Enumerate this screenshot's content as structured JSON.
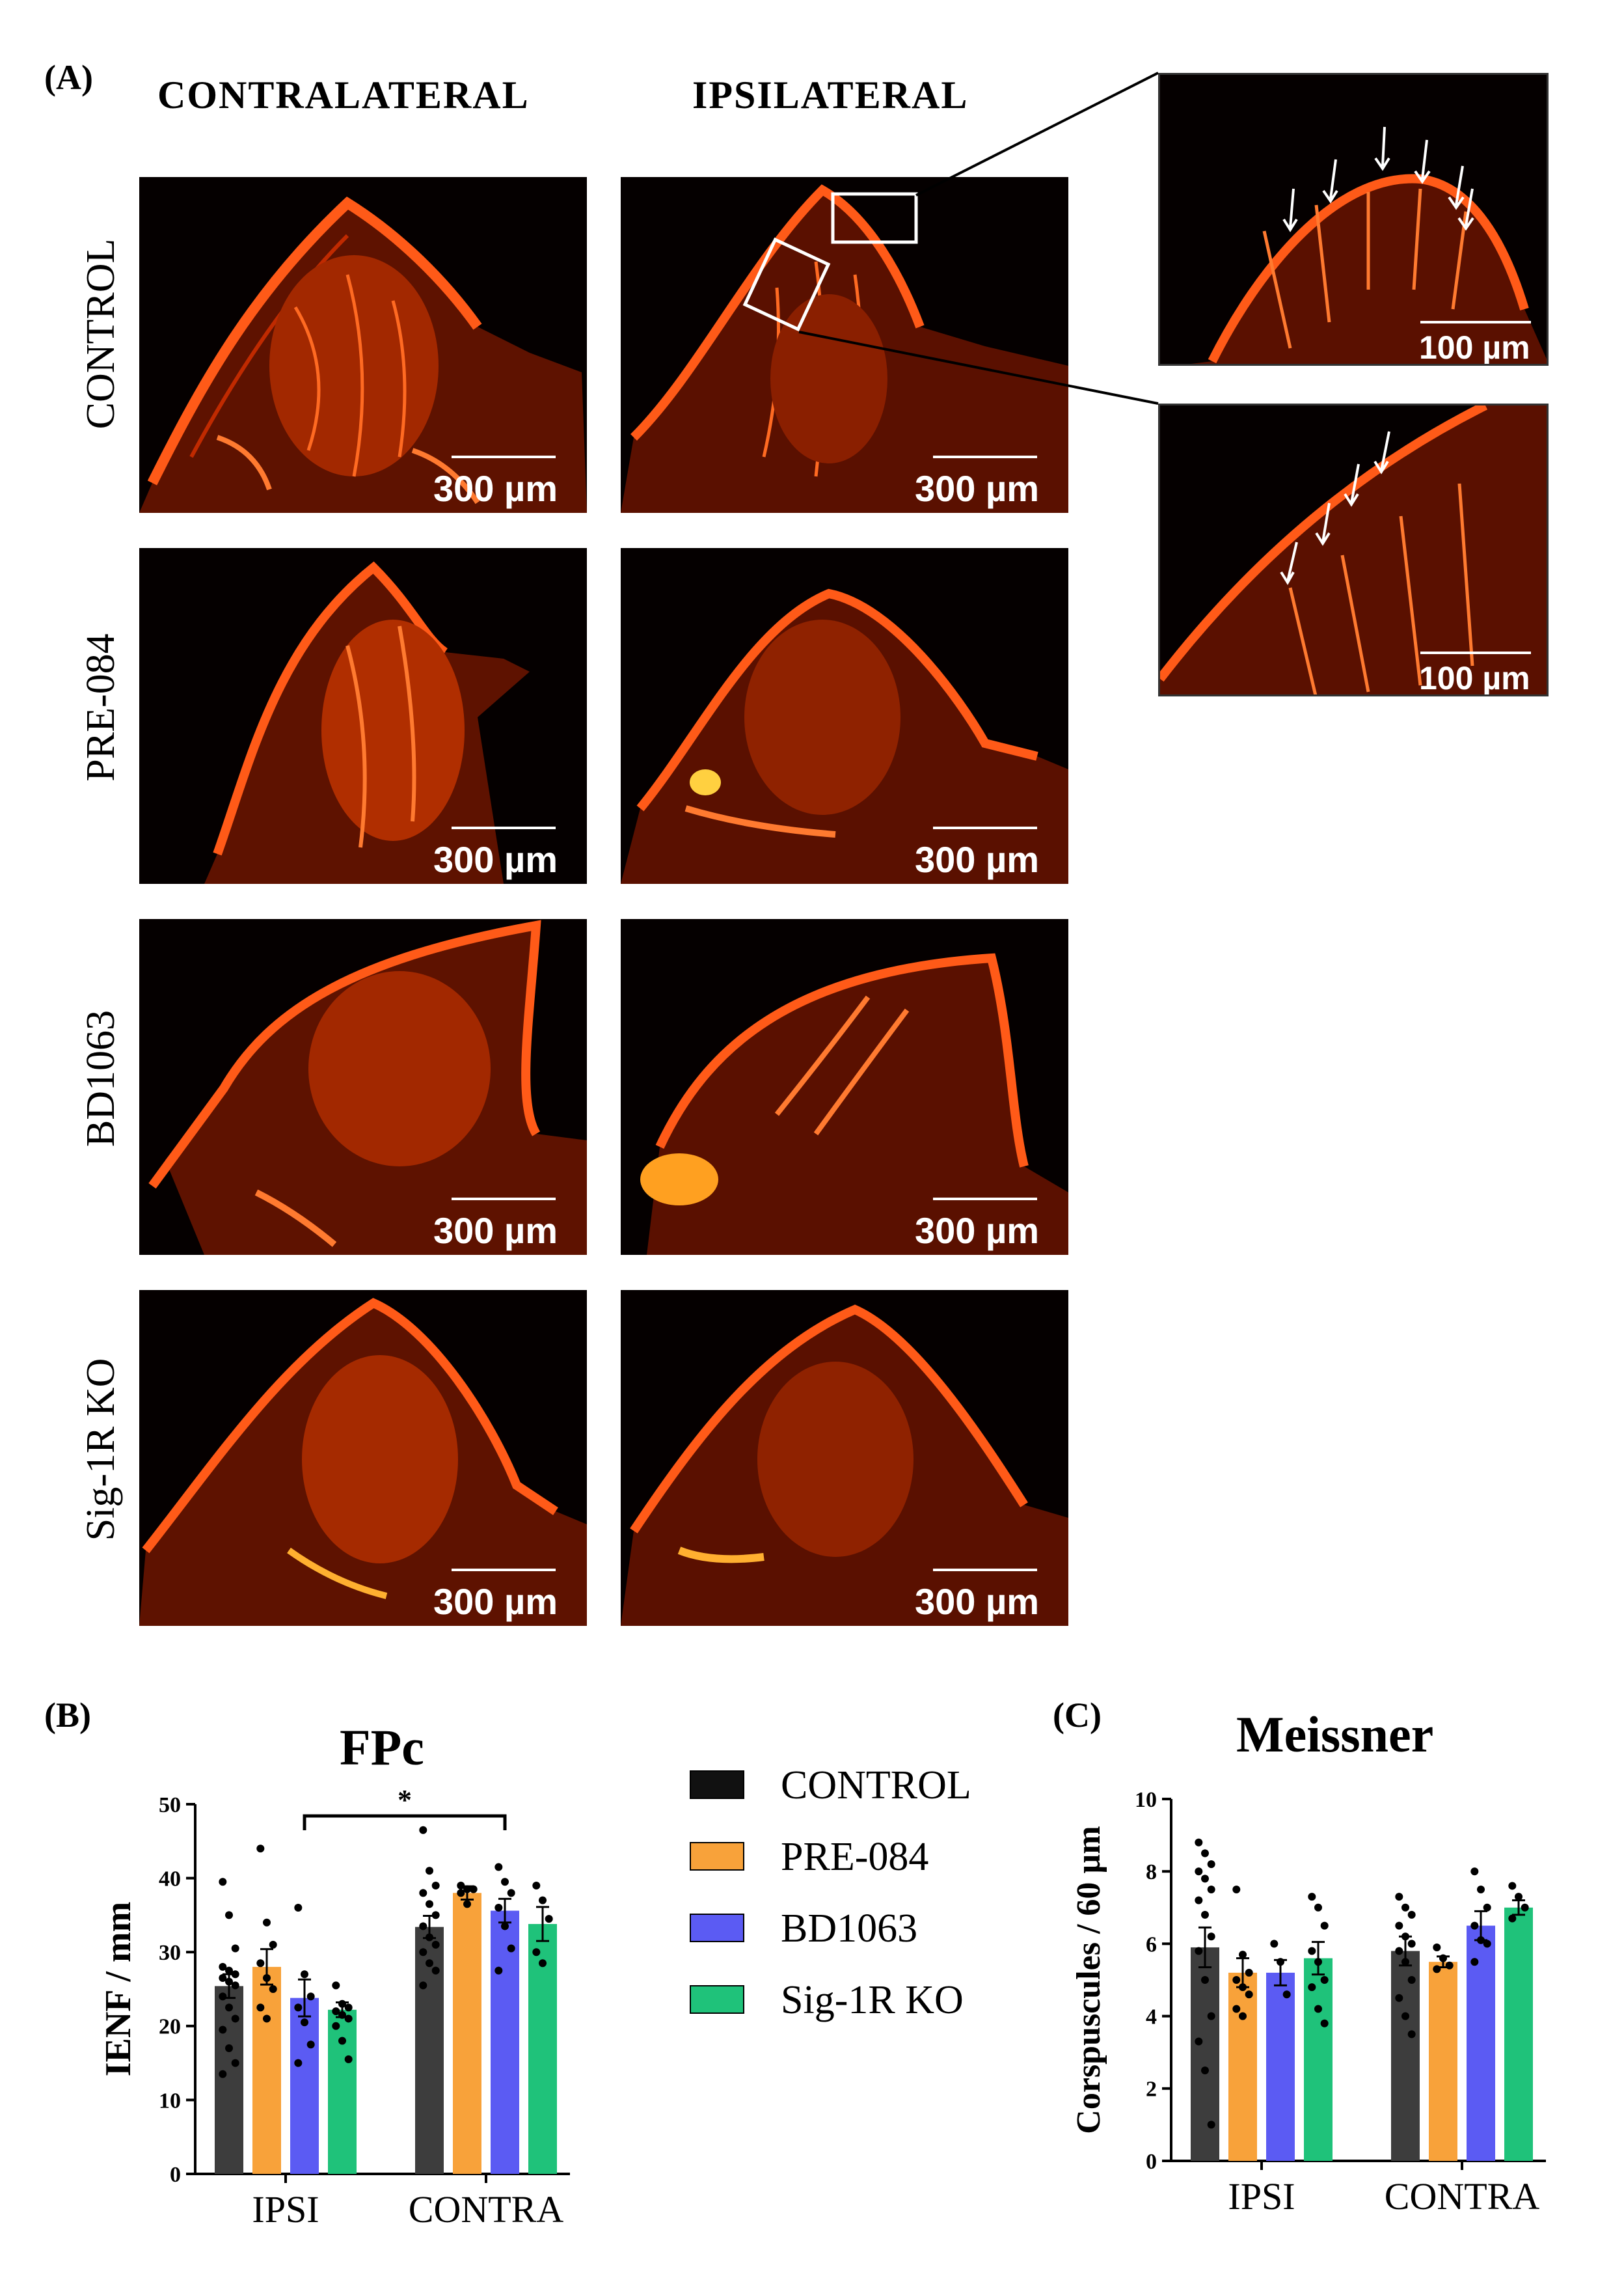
{
  "panels": {
    "a_label": "(A)",
    "b_label": "(B)",
    "c_label": "(C)"
  },
  "columns": {
    "contralateral": "CONTRALATERAL",
    "ipsilateral": "IPSILATERAL"
  },
  "rows": [
    {
      "label": "CONTROL"
    },
    {
      "label": "PRE-084"
    },
    {
      "label": "BD1063"
    },
    {
      "label": "Sig-1R KO"
    }
  ],
  "scalebars": {
    "main": "300 µm",
    "inset": "100 µm"
  },
  "colors": {
    "tissue": "#ff4a10",
    "tissue_dark": "#7a1500",
    "background": "#050000",
    "control": "#3d3d3d",
    "pre084": "#f8a23a",
    "bd1063": "#5b5bf3",
    "sig1rko": "#1fc27a"
  },
  "legend": [
    {
      "label": "CONTROL",
      "color": "#111111"
    },
    {
      "label": "PRE-084",
      "color": "#f8a23a"
    },
    {
      "label": "BD1063",
      "color": "#5b5bf3"
    },
    {
      "label": "Sig-1R KO",
      "color": "#1fc27a"
    }
  ],
  "chart_data": [
    {
      "type": "bar",
      "title": "FPc",
      "ylabel": "IENF / mm",
      "xlabel": "",
      "ylim": [
        0,
        50
      ],
      "yticks": [
        0,
        10,
        20,
        30,
        40,
        50
      ],
      "categories": [
        "IPSI",
        "CONTRA"
      ],
      "series": [
        {
          "name": "CONTROL",
          "color": "#3d3d3d",
          "values": [
            25.4,
            33.4
          ],
          "sem": [
            1.6,
            1.5
          ]
        },
        {
          "name": "PRE-084",
          "color": "#f8a23a",
          "values": [
            28.0,
            38.0
          ],
          "sem": [
            2.4,
            0.9
          ]
        },
        {
          "name": "BD1063",
          "color": "#5b5bf3",
          "values": [
            23.8,
            35.6
          ],
          "sem": [
            2.5,
            1.6
          ]
        },
        {
          "name": "Sig-1R KO",
          "color": "#1fc27a",
          "values": [
            22.2,
            33.8
          ],
          "sem": [
            1.0,
            2.3
          ]
        }
      ],
      "points": [
        [
          [
            39.5,
            35.0,
            30.5,
            28.0,
            27.5,
            27.0,
            26.5,
            26.0,
            25.5,
            24.0,
            22.5,
            21.0,
            19.5,
            17.0,
            15.0,
            13.5
          ],
          [
            46.5,
            41.0,
            39.0,
            38.0,
            36.5,
            35.0,
            33.5,
            32.0,
            31.0,
            30.0,
            28.5,
            27.5,
            25.5
          ]
        ],
        [
          [
            44.0,
            34.0,
            31.0,
            28.5,
            26.5,
            25.0,
            22.5,
            21.0
          ],
          [
            39.0,
            38.5,
            38.5,
            38.0,
            36.5
          ]
        ],
        [
          [
            36.0,
            27.0,
            24.0,
            22.5,
            20.5,
            17.5,
            15.0
          ],
          [
            41.5,
            39.5,
            38.0,
            36.0,
            33.5,
            30.5,
            27.5
          ]
        ],
        [
          [
            25.5,
            23.0,
            22.5,
            22.0,
            21.5,
            21.0,
            20.0,
            18.0,
            15.5
          ],
          [
            39.0,
            37.0,
            34.5,
            30.0,
            28.5
          ]
        ]
      ],
      "significance": {
        "label": "*"
      }
    },
    {
      "type": "bar",
      "title": "Meissner",
      "ylabel": "Corspuscules / 60 µm",
      "xlabel": "",
      "ylim": [
        0,
        10
      ],
      "yticks": [
        0,
        2,
        4,
        6,
        8,
        10
      ],
      "categories": [
        "IPSI",
        "CONTRA"
      ],
      "series": [
        {
          "name": "CONTROL",
          "color": "#3d3d3d",
          "values": [
            5.9,
            5.8
          ],
          "sem": [
            0.55,
            0.4
          ]
        },
        {
          "name": "PRE-084",
          "color": "#f8a23a",
          "values": [
            5.2,
            5.5
          ],
          "sem": [
            0.4,
            0.15
          ]
        },
        {
          "name": "BD1063",
          "color": "#5b5bf3",
          "values": [
            5.2,
            6.5
          ],
          "sem": [
            0.35,
            0.4
          ]
        },
        {
          "name": "Sig-1R KO",
          "color": "#1fc27a",
          "values": [
            5.6,
            7.0
          ],
          "sem": [
            0.45,
            0.2
          ]
        }
      ],
      "points": [
        [
          [
            8.8,
            8.5,
            8.2,
            8.0,
            7.8,
            7.5,
            7.2,
            6.8,
            6.2,
            5.8,
            5.0,
            4.0,
            3.3,
            2.5,
            1.0
          ],
          [
            7.3,
            7.0,
            6.8,
            6.5,
            6.2,
            6.0,
            5.8,
            5.5,
            5.0,
            4.5,
            4.0,
            3.5
          ]
        ],
        [
          [
            7.5,
            5.7,
            5.2,
            5.0,
            4.8,
            4.6,
            4.2,
            4.0
          ],
          [
            5.9,
            5.6,
            5.4,
            5.3
          ]
        ],
        [
          [
            6.0,
            5.5,
            4.6
          ],
          [
            8.0,
            7.5,
            7.0,
            6.5,
            6.1,
            6.0,
            5.5
          ]
        ],
        [
          [
            7.3,
            7.0,
            6.5,
            5.8,
            5.5,
            5.0,
            4.8,
            4.2,
            3.8
          ],
          [
            7.6,
            7.3,
            7.0,
            6.7
          ]
        ]
      ]
    }
  ]
}
